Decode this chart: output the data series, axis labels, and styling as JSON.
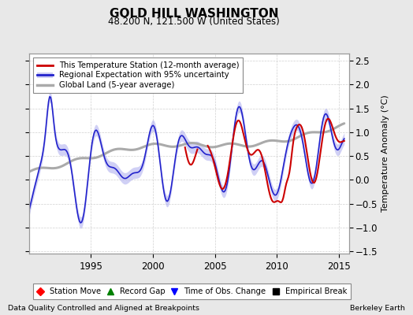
{
  "title": "GOLD HILL WASHINGTON",
  "subtitle": "48.200 N, 121.500 W (United States)",
  "ylabel": "Temperature Anomaly (°C)",
  "xlabel_left": "Data Quality Controlled and Aligned at Breakpoints",
  "xlabel_right": "Berkeley Earth",
  "ylim": [
    -1.55,
    2.65
  ],
  "xlim": [
    1990.0,
    2015.8
  ],
  "xticks": [
    1995,
    2000,
    2005,
    2010,
    2015
  ],
  "yticks": [
    -1.5,
    -1.0,
    -0.5,
    0.0,
    0.5,
    1.0,
    1.5,
    2.0,
    2.5
  ],
  "bg_color": "#e8e8e8",
  "plot_bg_color": "#ffffff",
  "grid_color": "#cccccc",
  "red_line_color": "#cc0000",
  "blue_line_color": "#2222cc",
  "blue_fill_color": "#aaaaee",
  "gray_line_color": "#aaaaaa",
  "legend_items": [
    "This Temperature Station (12-month average)",
    "Regional Expectation with 95% uncertainty",
    "Global Land (5-year average)"
  ],
  "bottom_legend": [
    "Station Move",
    "Record Gap",
    "Time of Obs. Change",
    "Empirical Break"
  ]
}
